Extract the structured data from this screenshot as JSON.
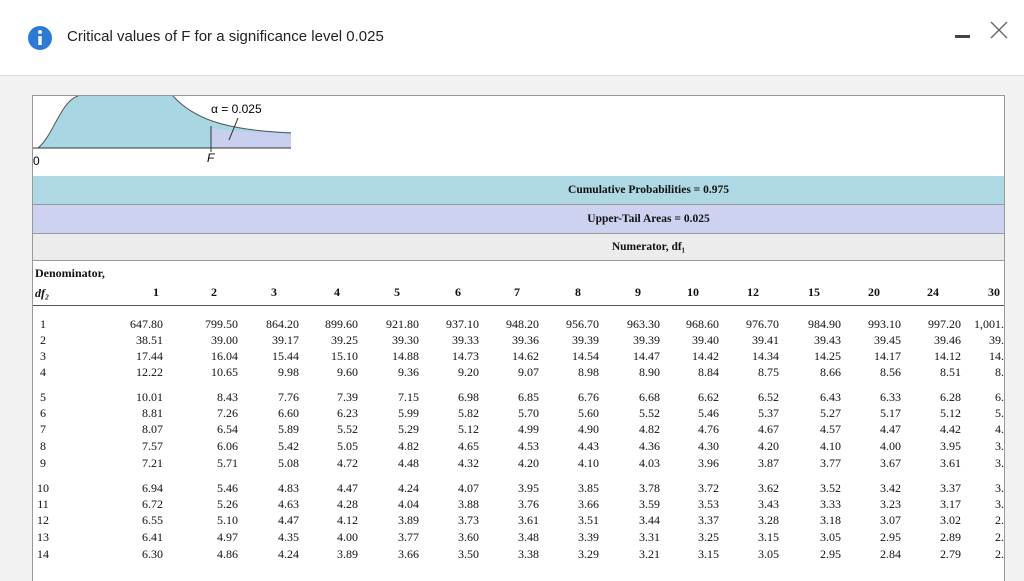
{
  "dialog": {
    "title": "Critical values of F for a significance level 0.025"
  },
  "figure": {
    "alpha_label": "α = 0.025",
    "origin_label": "0",
    "f_label": "F"
  },
  "table": {
    "cumulative": "Cumulative Probabilities = 0.975",
    "upper_tail": "Upper-Tail Areas = 0.025",
    "numerator": "Numerator, df₁",
    "denominator": "Denominator,",
    "df2": "df₂",
    "columns": [
      "1",
      "2",
      "3",
      "4",
      "5",
      "6",
      "7",
      "8",
      "9",
      "10",
      "12",
      "15",
      "20",
      "24",
      "30"
    ],
    "rows": [
      [
        "1",
        "647.80",
        "799.50",
        "864.20",
        "899.60",
        "921.80",
        "937.10",
        "948.20",
        "956.70",
        "963.30",
        "968.60",
        "976.70",
        "984.90",
        "993.10",
        "997.20",
        "1,001."
      ],
      [
        "2",
        "38.51",
        "39.00",
        "39.17",
        "39.25",
        "39.30",
        "39.33",
        "39.36",
        "39.39",
        "39.39",
        "39.40",
        "39.41",
        "39.43",
        "39.45",
        "39.46",
        "39."
      ],
      [
        "3",
        "17.44",
        "16.04",
        "15.44",
        "15.10",
        "14.88",
        "14.73",
        "14.62",
        "14.54",
        "14.47",
        "14.42",
        "14.34",
        "14.25",
        "14.17",
        "14.12",
        "14."
      ],
      [
        "4",
        "12.22",
        "10.65",
        "9.98",
        "9.60",
        "9.36",
        "9.20",
        "9.07",
        "8.98",
        "8.90",
        "8.84",
        "8.75",
        "8.66",
        "8.56",
        "8.51",
        "8."
      ],
      [
        "5",
        "10.01",
        "8.43",
        "7.76",
        "7.39",
        "7.15",
        "6.98",
        "6.85",
        "6.76",
        "6.68",
        "6.62",
        "6.52",
        "6.43",
        "6.33",
        "6.28",
        "6."
      ],
      [
        "6",
        "8.81",
        "7.26",
        "6.60",
        "6.23",
        "5.99",
        "5.82",
        "5.70",
        "5.60",
        "5.52",
        "5.46",
        "5.37",
        "5.27",
        "5.17",
        "5.12",
        "5."
      ],
      [
        "7",
        "8.07",
        "6.54",
        "5.89",
        "5.52",
        "5.29",
        "5.12",
        "4.99",
        "4.90",
        "4.82",
        "4.76",
        "4.67",
        "4.57",
        "4.47",
        "4.42",
        "4."
      ],
      [
        "8",
        "7.57",
        "6.06",
        "5.42",
        "5.05",
        "4.82",
        "4.65",
        "4.53",
        "4.43",
        "4.36",
        "4.30",
        "4.20",
        "4.10",
        "4.00",
        "3.95",
        "3."
      ],
      [
        "9",
        "7.21",
        "5.71",
        "5.08",
        "4.72",
        "4.48",
        "4.32",
        "4.20",
        "4.10",
        "4.03",
        "3.96",
        "3.87",
        "3.77",
        "3.67",
        "3.61",
        "3."
      ],
      [
        "10",
        "6.94",
        "5.46",
        "4.83",
        "4.47",
        "4.24",
        "4.07",
        "3.95",
        "3.85",
        "3.78",
        "3.72",
        "3.62",
        "3.52",
        "3.42",
        "3.37",
        "3."
      ],
      [
        "11",
        "6.72",
        "5.26",
        "4.63",
        "4.28",
        "4.04",
        "3.88",
        "3.76",
        "3.66",
        "3.59",
        "3.53",
        "3.43",
        "3.33",
        "3.23",
        "3.17",
        "3."
      ],
      [
        "12",
        "6.55",
        "5.10",
        "4.47",
        "4.12",
        "3.89",
        "3.73",
        "3.61",
        "3.51",
        "3.44",
        "3.37",
        "3.28",
        "3.18",
        "3.07",
        "3.02",
        "2."
      ],
      [
        "13",
        "6.41",
        "4.97",
        "4.35",
        "4.00",
        "3.77",
        "3.60",
        "3.48",
        "3.39",
        "3.31",
        "3.25",
        "3.15",
        "3.05",
        "2.95",
        "2.89",
        "2."
      ],
      [
        "14",
        "6.30",
        "4.86",
        "4.24",
        "3.89",
        "3.66",
        "3.50",
        "3.38",
        "3.29",
        "3.21",
        "3.15",
        "3.05",
        "2.95",
        "2.84",
        "2.79",
        "2."
      ]
    ]
  }
}
